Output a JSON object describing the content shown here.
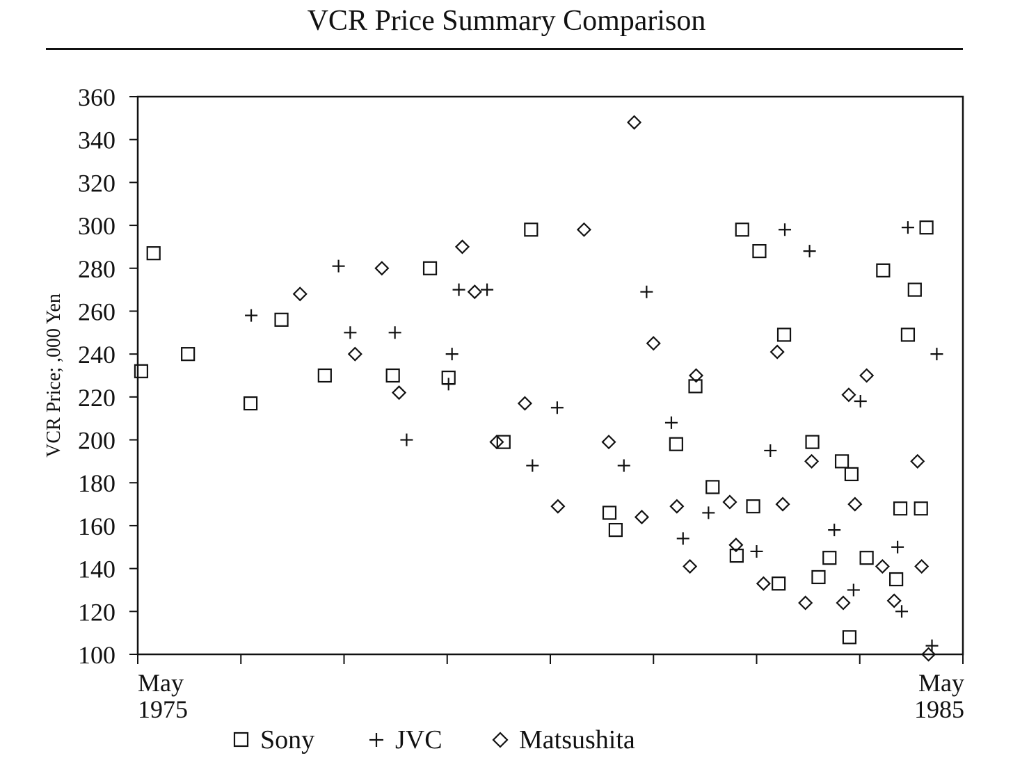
{
  "chart_data": {
    "type": "scatter",
    "title": "VCR Price Summary Comparison",
    "xlabel": "",
    "ylabel": "VCR Price; ,000 Yen",
    "ylim": [
      100,
      360
    ],
    "xlim": [
      0,
      120
    ],
    "x_unit": "months since May 1975",
    "y_ticks": [
      100,
      120,
      140,
      160,
      180,
      200,
      220,
      240,
      260,
      280,
      300,
      320,
      340,
      360
    ],
    "x_ticks": [
      0,
      15,
      30,
      45,
      60,
      75,
      90,
      105,
      120
    ],
    "x_tick_labels": [
      {
        "x": 0,
        "line1": "May",
        "line2": "1975"
      },
      {
        "x": 120,
        "line1": "May",
        "line2": "1985"
      }
    ],
    "series": [
      {
        "name": "Sony",
        "marker": "square",
        "points": [
          [
            0.5,
            232
          ],
          [
            2.3,
            287
          ],
          [
            7.3,
            240
          ],
          [
            16.4,
            217
          ],
          [
            20.9,
            256
          ],
          [
            27.2,
            230
          ],
          [
            37.1,
            230
          ],
          [
            42.5,
            280
          ],
          [
            45.2,
            229
          ],
          [
            53.2,
            199
          ],
          [
            57.2,
            298
          ],
          [
            68.6,
            166
          ],
          [
            69.5,
            158
          ],
          [
            78.3,
            198
          ],
          [
            81.1,
            225
          ],
          [
            83.6,
            178
          ],
          [
            87.1,
            146
          ],
          [
            87.9,
            298
          ],
          [
            89.5,
            169
          ],
          [
            90.4,
            288
          ],
          [
            93.2,
            133
          ],
          [
            94.0,
            249
          ],
          [
            98.1,
            199
          ],
          [
            99.0,
            136
          ],
          [
            100.6,
            145
          ],
          [
            102.4,
            190
          ],
          [
            103.8,
            184
          ],
          [
            103.5,
            108
          ],
          [
            106.0,
            145
          ],
          [
            108.4,
            279
          ],
          [
            110.3,
            135
          ],
          [
            110.9,
            168
          ],
          [
            112.0,
            249
          ],
          [
            113.0,
            270
          ],
          [
            113.9,
            168
          ],
          [
            114.7,
            299
          ]
        ]
      },
      {
        "name": "JVC",
        "marker": "plus",
        "points": [
          [
            16.5,
            258
          ],
          [
            29.2,
            281
          ],
          [
            30.9,
            250
          ],
          [
            37.4,
            250
          ],
          [
            39.1,
            200
          ],
          [
            45.2,
            226
          ],
          [
            45.7,
            240
          ],
          [
            46.7,
            270
          ],
          [
            50.8,
            270
          ],
          [
            57.4,
            188
          ],
          [
            61.0,
            215
          ],
          [
            70.7,
            188
          ],
          [
            74.0,
            269
          ],
          [
            77.6,
            208
          ],
          [
            79.3,
            154
          ],
          [
            83.0,
            166
          ],
          [
            90.0,
            148
          ],
          [
            92.0,
            195
          ],
          [
            94.1,
            298
          ],
          [
            97.7,
            288
          ],
          [
            101.3,
            158
          ],
          [
            104.1,
            130
          ],
          [
            105.1,
            218
          ],
          [
            110.5,
            150
          ],
          [
            111.1,
            120
          ],
          [
            112.0,
            299
          ],
          [
            116.2,
            240
          ],
          [
            115.5,
            104
          ]
        ]
      },
      {
        "name": "Matsushita",
        "marker": "diamond",
        "points": [
          [
            23.6,
            268
          ],
          [
            31.6,
            240
          ],
          [
            35.5,
            280
          ],
          [
            38.0,
            222
          ],
          [
            47.2,
            290
          ],
          [
            49.0,
            269
          ],
          [
            52.2,
            199
          ],
          [
            56.3,
            217
          ],
          [
            61.1,
            169
          ],
          [
            64.9,
            298
          ],
          [
            68.5,
            199
          ],
          [
            72.2,
            348
          ],
          [
            73.3,
            164
          ],
          [
            75.0,
            245
          ],
          [
            78.4,
            169
          ],
          [
            80.3,
            141
          ],
          [
            81.2,
            230
          ],
          [
            86.1,
            171
          ],
          [
            87.0,
            151
          ],
          [
            91.0,
            133
          ],
          [
            93.0,
            241
          ],
          [
            93.8,
            170
          ],
          [
            97.1,
            124
          ],
          [
            98.0,
            190
          ],
          [
            102.6,
            124
          ],
          [
            103.4,
            221
          ],
          [
            104.3,
            170
          ],
          [
            106.0,
            230
          ],
          [
            108.3,
            141
          ],
          [
            110.0,
            125
          ],
          [
            113.4,
            190
          ],
          [
            114.0,
            141
          ],
          [
            115.0,
            100
          ]
        ]
      }
    ],
    "legend": [
      {
        "name": "Sony",
        "marker": "square"
      },
      {
        "name": "JVC",
        "marker": "plus"
      },
      {
        "name": "Matsushita",
        "marker": "diamond"
      }
    ]
  }
}
